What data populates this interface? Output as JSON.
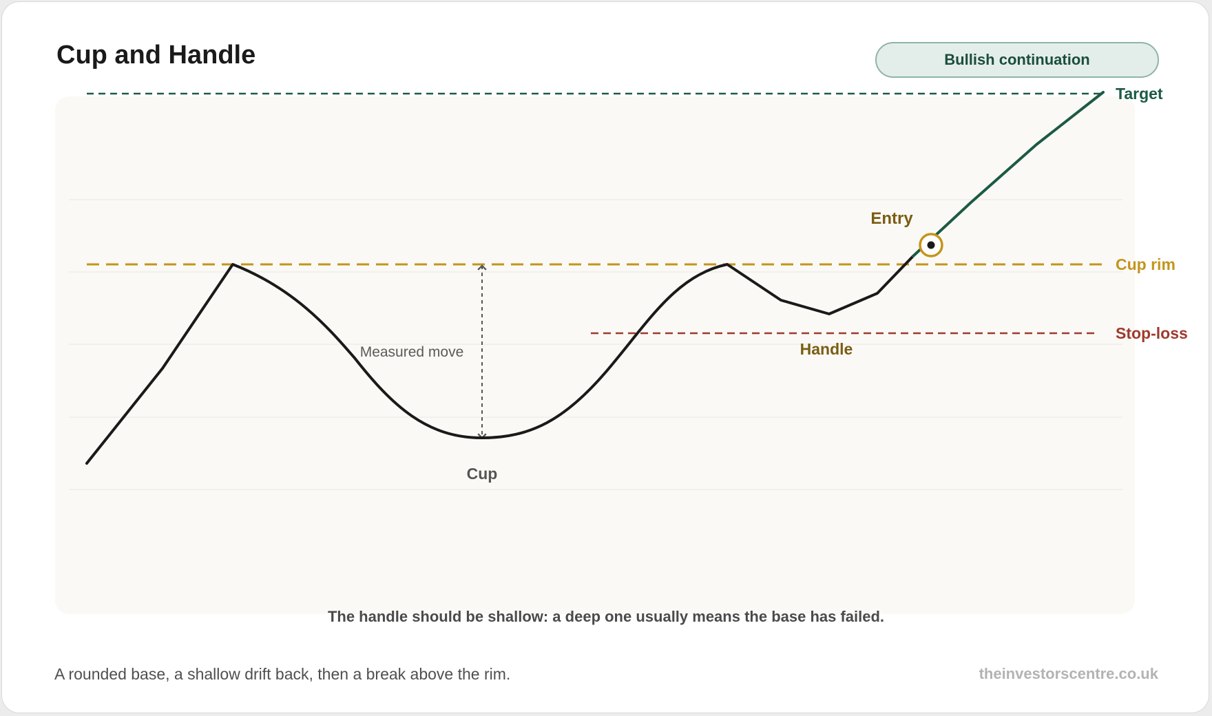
{
  "header": {
    "title": "Cup and Handle",
    "badge": "Bullish continuation"
  },
  "chart_data": {
    "type": "line",
    "pattern": "cup-and-handle",
    "levels": [
      {
        "key": "target",
        "label": "Target",
        "color": "#1c5a45",
        "style": "dashed"
      },
      {
        "key": "rim",
        "label": "Cup rim",
        "color": "#c4951c",
        "style": "dashed"
      },
      {
        "key": "stop",
        "label": "Stop-loss",
        "color": "#9c3b2c",
        "style": "dashed"
      }
    ],
    "annotations": {
      "measured_move": "Measured move",
      "cup": "Cup",
      "handle": "Handle",
      "entry": "Entry"
    },
    "series": [
      {
        "key": "price",
        "color": "#1a1a1a"
      },
      {
        "key": "breakout",
        "color": "#1c5a45"
      }
    ],
    "grid": true,
    "axes_visible": false
  },
  "footer": {
    "note": "The handle should be shallow: a deep one usually means the base has failed.",
    "caption": "A rounded base, a shallow drift back, then a break above the rim.",
    "source": "theinvestorscentre.co.uk"
  }
}
